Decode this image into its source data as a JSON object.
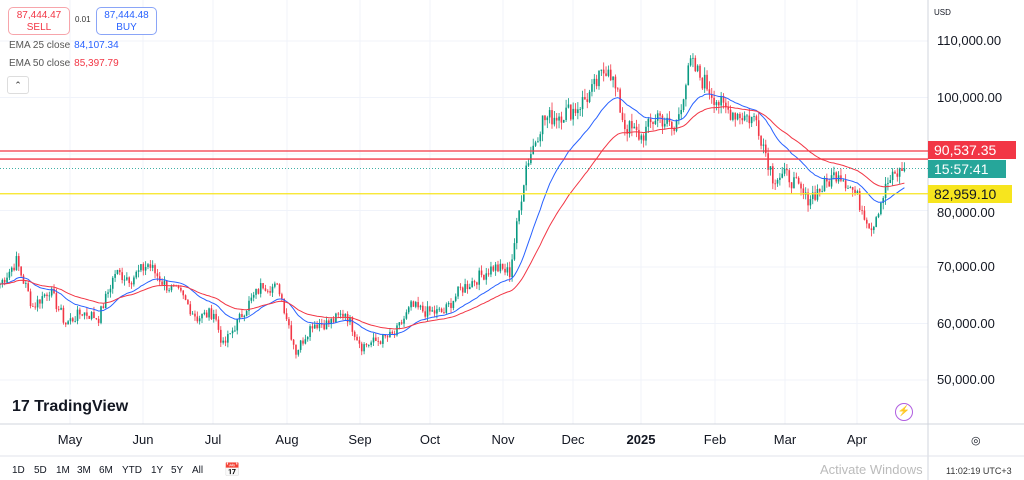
{
  "header": {
    "currency": "USD"
  },
  "trade": {
    "sell_price": "87,444.47",
    "sell_label": "SELL",
    "spread": "0.01",
    "buy_price": "87,444.48",
    "buy_label": "BUY"
  },
  "legend": {
    "ema25_label": "EMA 25 close",
    "ema25_value": "84,107.34",
    "ema50_label": "EMA 50 close",
    "ema50_value": "85,397.79",
    "collapse_icon": "chevron-up"
  },
  "price_axis": [
    "110,000.00",
    "100,000.00",
    "80,000.00",
    "70,000.00",
    "60,000.00",
    "50,000.00"
  ],
  "tags": {
    "level_red": "90,537.35",
    "countdown": "15:57:41",
    "level_yellow": "82,959.10"
  },
  "time_axis": [
    "May",
    "Jun",
    "Jul",
    "Aug",
    "Sep",
    "Oct",
    "Nov",
    "Dec",
    "2025",
    "Feb",
    "Mar",
    "Apr"
  ],
  "ranges": [
    "1D",
    "5D",
    "1M",
    "3M",
    "6M",
    "YTD",
    "1Y",
    "5Y",
    "All"
  ],
  "clock": "11:02:19 UTC+3",
  "watermark": "Activate Windows",
  "logo": "TradingView",
  "colors": {
    "up": "#089981",
    "down": "#f23645",
    "ema25": "#2962ff",
    "ema50": "#f23645",
    "yellow": "#f7e51e"
  },
  "chart_data": {
    "type": "candlestick",
    "ylim": [
      45000,
      113000
    ],
    "horizontal_lines": [
      {
        "value": 90537.35,
        "color": "#f23645"
      },
      {
        "value": 89100,
        "color": "#f23645"
      },
      {
        "value": 82959.1,
        "color": "#f7e51e"
      }
    ],
    "weekly_closes": [
      [
        "2024-04-01",
        67000
      ],
      [
        "2024-04-08",
        71000
      ],
      [
        "2024-04-15",
        63000
      ],
      [
        "2024-04-22",
        66000
      ],
      [
        "2024-04-29",
        60000
      ],
      [
        "2024-05-06",
        62000
      ],
      [
        "2024-05-13",
        61000
      ],
      [
        "2024-05-20",
        69000
      ],
      [
        "2024-05-27",
        68000
      ],
      [
        "2024-06-03",
        70500
      ],
      [
        "2024-06-10",
        67000
      ],
      [
        "2024-06-17",
        65000
      ],
      [
        "2024-06-24",
        61000
      ],
      [
        "2024-07-01",
        62000
      ],
      [
        "2024-07-05",
        56000
      ],
      [
        "2024-07-15",
        63000
      ],
      [
        "2024-07-22",
        67000
      ],
      [
        "2024-07-29",
        66000
      ],
      [
        "2024-08-05",
        55000
      ],
      [
        "2024-08-12",
        60000
      ],
      [
        "2024-08-19",
        60000
      ],
      [
        "2024-08-26",
        62000
      ],
      [
        "2024-09-02",
        56000
      ],
      [
        "2024-09-09",
        57000
      ],
      [
        "2024-09-16",
        58000
      ],
      [
        "2024-09-23",
        63000
      ],
      [
        "2024-09-30",
        62000
      ],
      [
        "2024-10-07",
        62000
      ],
      [
        "2024-10-14",
        66000
      ],
      [
        "2024-10-21",
        68000
      ],
      [
        "2024-10-28",
        70000
      ],
      [
        "2024-11-04",
        69000
      ],
      [
        "2024-11-11",
        88000
      ],
      [
        "2024-11-18",
        96000
      ],
      [
        "2024-11-25",
        97000
      ],
      [
        "2024-12-02",
        98000
      ],
      [
        "2024-12-09",
        101000
      ],
      [
        "2024-12-16",
        106000
      ],
      [
        "2024-12-23",
        95000
      ],
      [
        "2024-12-30",
        93000
      ],
      [
        "2025-01-06",
        97000
      ],
      [
        "2025-01-13",
        94000
      ],
      [
        "2025-01-20",
        106000
      ],
      [
        "2025-01-27",
        102000
      ],
      [
        "2025-02-03",
        98000
      ],
      [
        "2025-02-10",
        97000
      ],
      [
        "2025-02-17",
        96000
      ],
      [
        "2025-02-24",
        86000
      ],
      [
        "2025-03-03",
        86000
      ],
      [
        "2025-03-10",
        82000
      ],
      [
        "2025-03-17",
        84000
      ],
      [
        "2025-03-24",
        87000
      ],
      [
        "2025-03-31",
        83000
      ],
      [
        "2025-04-07",
        77000
      ],
      [
        "2025-04-14",
        85000
      ],
      [
        "2025-04-21",
        87444.47
      ]
    ],
    "indicators": [
      "EMA 25",
      "EMA 50"
    ]
  }
}
